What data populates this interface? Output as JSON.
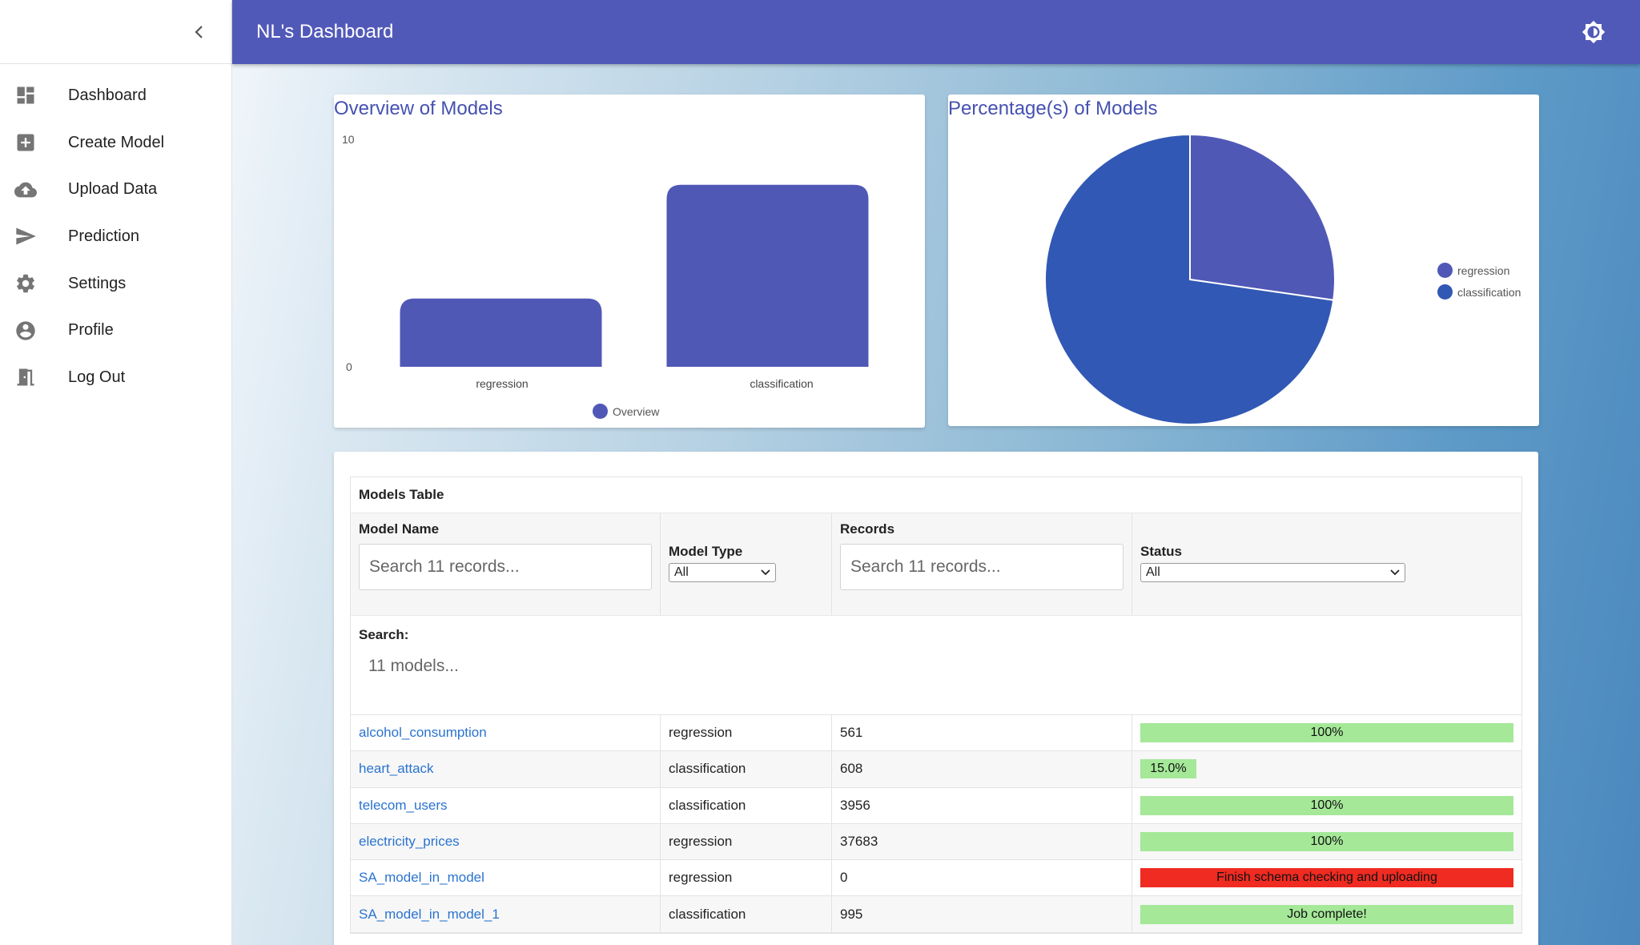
{
  "app": {
    "title": "NL's Dashboard"
  },
  "sidebar": {
    "items": [
      {
        "label": "Dashboard",
        "icon": "dashboard-icon"
      },
      {
        "label": "Create Model",
        "icon": "add-box-icon"
      },
      {
        "label": "Upload Data",
        "icon": "cloud-upload-icon"
      },
      {
        "label": "Prediction",
        "icon": "send-icon"
      },
      {
        "label": "Settings",
        "icon": "gear-icon"
      },
      {
        "label": "Profile",
        "icon": "account-circle-icon"
      },
      {
        "label": "Log Out",
        "icon": "exit-door-icon"
      }
    ]
  },
  "colors": {
    "primary": "#5159b8",
    "bar": "#5058b6",
    "pie_regression": "#5058b6",
    "pie_classification": "#3158b4",
    "link": "#2a73d0",
    "status_ok": "#a4e898",
    "status_error": "#ef2b22"
  },
  "charts": {
    "bar": {
      "title": "Overview of Models",
      "legend": "Overview",
      "chart_data": {
        "type": "bar",
        "categories": [
          "regression",
          "classification"
        ],
        "values": [
          3,
          8
        ],
        "ylim": [
          0,
          10
        ],
        "yticks": [
          "0",
          "10"
        ],
        "series": [
          {
            "name": "Overview",
            "values": [
              3,
              8
            ]
          }
        ]
      }
    },
    "pie": {
      "title": "Percentage(s) of Models",
      "chart_data": {
        "type": "pie",
        "labels": [
          "regression",
          "classification"
        ],
        "values": [
          3,
          8
        ],
        "legend_position": "right"
      }
    }
  },
  "table": {
    "caption": "Models Table",
    "columns": {
      "model_name": {
        "label": "Model Name",
        "placeholder": "Search 11 records..."
      },
      "model_type": {
        "label": "Model Type",
        "selected": "All"
      },
      "records": {
        "label": "Records",
        "placeholder": "Search 11 records..."
      },
      "status": {
        "label": "Status",
        "selected": "All"
      }
    },
    "search": {
      "label": "Search:",
      "placeholder": "11 models..."
    },
    "rows": [
      {
        "name": "alcohol_consumption",
        "type": "regression",
        "records": "561",
        "status": "100%",
        "progress": 100,
        "state": "ok"
      },
      {
        "name": "heart_attack",
        "type": "classification",
        "records": "608",
        "status": "15.0%",
        "progress": 15,
        "state": "ok"
      },
      {
        "name": "telecom_users",
        "type": "classification",
        "records": "3956",
        "status": "100%",
        "progress": 100,
        "state": "ok"
      },
      {
        "name": "electricity_prices",
        "type": "regression",
        "records": "37683",
        "status": "100%",
        "progress": 100,
        "state": "ok"
      },
      {
        "name": "SA_model_in_model",
        "type": "regression",
        "records": "0",
        "status": "Finish schema checking and uploading",
        "progress": 100,
        "state": "error"
      },
      {
        "name": "SA_model_in_model_1",
        "type": "classification",
        "records": "995",
        "status": "Job complete!",
        "progress": 100,
        "state": "ok"
      }
    ]
  }
}
